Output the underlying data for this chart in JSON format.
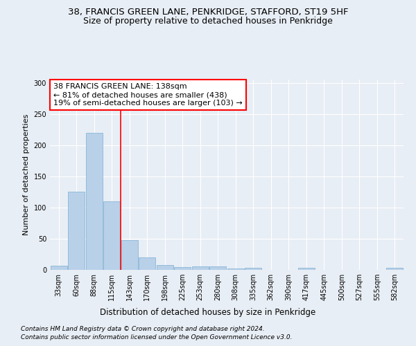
{
  "title1": "38, FRANCIS GREEN LANE, PENKRIDGE, STAFFORD, ST19 5HF",
  "title2": "Size of property relative to detached houses in Penkridge",
  "xlabel": "Distribution of detached houses by size in Penkridge",
  "ylabel": "Number of detached properties",
  "bar_color": "#b8d0e8",
  "bar_edge_color": "#7aafd4",
  "bar_categories": [
    "33sqm",
    "60sqm",
    "88sqm",
    "115sqm",
    "143sqm",
    "170sqm",
    "198sqm",
    "225sqm",
    "253sqm",
    "280sqm",
    "308sqm",
    "335sqm",
    "362sqm",
    "390sqm",
    "417sqm",
    "445sqm",
    "500sqm",
    "527sqm",
    "555sqm",
    "582sqm"
  ],
  "bar_values": [
    7,
    125,
    220,
    110,
    48,
    20,
    8,
    4,
    5,
    5,
    2,
    3,
    0,
    0,
    3,
    0,
    0,
    0,
    0,
    3
  ],
  "marker_line_bin": 4,
  "annotation_text": "38 FRANCIS GREEN LANE: 138sqm\n← 81% of detached houses are smaller (438)\n19% of semi-detached houses are larger (103) →",
  "ylim": [
    0,
    305
  ],
  "yticks": [
    0,
    50,
    100,
    150,
    200,
    250,
    300
  ],
  "footer1": "Contains HM Land Registry data © Crown copyright and database right 2024.",
  "footer2": "Contains public sector information licensed under the Open Government Licence v3.0.",
  "bg_color": "#e8eef5",
  "plot_bg_color": "#e8eef5",
  "grid_color": "#ffffff",
  "title1_fontsize": 9.5,
  "title2_fontsize": 9,
  "ylabel_fontsize": 8,
  "xlabel_fontsize": 8.5,
  "tick_fontsize": 7,
  "annotation_fontsize": 8,
  "footer_fontsize": 6.5
}
